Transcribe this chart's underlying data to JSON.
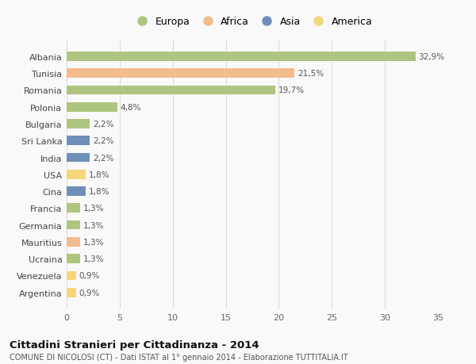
{
  "countries": [
    "Albania",
    "Tunisia",
    "Romania",
    "Polonia",
    "Bulgaria",
    "Sri Lanka",
    "India",
    "USA",
    "Cina",
    "Francia",
    "Germania",
    "Mauritius",
    "Ucraina",
    "Venezuela",
    "Argentina"
  ],
  "values": [
    32.9,
    21.5,
    19.7,
    4.8,
    2.2,
    2.2,
    2.2,
    1.8,
    1.8,
    1.3,
    1.3,
    1.3,
    1.3,
    0.9,
    0.9
  ],
  "labels": [
    "32,9%",
    "21,5%",
    "19,7%",
    "4,8%",
    "2,2%",
    "2,2%",
    "2,2%",
    "1,8%",
    "1,8%",
    "1,3%",
    "1,3%",
    "1,3%",
    "1,3%",
    "0,9%",
    "0,9%"
  ],
  "colors": [
    "#adc57e",
    "#f2bc8e",
    "#adc57e",
    "#adc57e",
    "#adc57e",
    "#6e8fb8",
    "#6e8fb8",
    "#f5d67a",
    "#6e8fb8",
    "#adc57e",
    "#adc57e",
    "#f2bc8e",
    "#adc57e",
    "#f5d67a",
    "#f5d67a"
  ],
  "legend_labels": [
    "Europa",
    "Africa",
    "Asia",
    "America"
  ],
  "legend_colors": [
    "#adc57e",
    "#f2bc8e",
    "#6e8fb8",
    "#f5d67a"
  ],
  "title": "Cittadini Stranieri per Cittadinanza - 2014",
  "subtitle": "COMUNE DI NICOLOSI (CT) - Dati ISTAT al 1° gennaio 2014 - Elaborazione TUTTITALIA.IT",
  "xlim": [
    0,
    35
  ],
  "xticks": [
    0,
    5,
    10,
    15,
    20,
    25,
    30,
    35
  ],
  "background_color": "#f9f9f9",
  "grid_color": "#dddddd"
}
